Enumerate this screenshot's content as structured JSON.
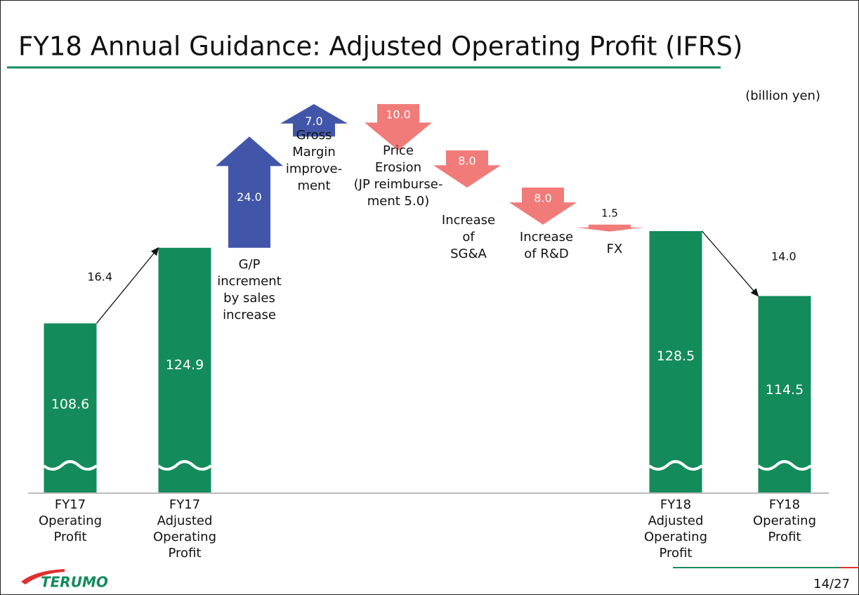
{
  "header": {
    "title": "FY18 Annual Guidance: Adjusted Operating Profit (IFRS)",
    "logo": "TERUMO",
    "page": "14/27"
  },
  "chart_data": {
    "type": "waterfall",
    "unit": "(billion yen)",
    "bar_color": "#138b5b",
    "up_color": "#4256a9",
    "down_color": "#f07b79",
    "bars": [
      {
        "label": [
          "FY17",
          "Operating",
          "Profit"
        ],
        "value": 108.6
      },
      {
        "label": [
          "FY17",
          "Adjusted",
          "Operating",
          "Profit"
        ],
        "value": 124.9
      },
      {
        "label": [
          "FY18",
          "Adjusted",
          "Operating",
          "Profit"
        ],
        "value": 128.5
      },
      {
        "label": [
          "FY18",
          "Operating",
          "Profit"
        ],
        "value": 114.5
      }
    ],
    "connectors": [
      {
        "value": 16.4
      },
      {
        "value": 14.0,
        "value_label": "14.0"
      }
    ],
    "steps": [
      {
        "label": [
          "G/P",
          "increment",
          "by sales",
          "increase"
        ],
        "value": 24.0,
        "value_label": "24.0",
        "direction": "up"
      },
      {
        "label": [
          "Gross",
          "Margin",
          "improve-",
          "ment"
        ],
        "value": 7.0,
        "value_label": "7.0",
        "direction": "up"
      },
      {
        "label": [
          "Price",
          "Erosion",
          "(JP reimburse-",
          "ment 5.0)"
        ],
        "value": 10.0,
        "value_label": "10.0",
        "direction": "down"
      },
      {
        "label": [
          "Increase",
          "of",
          "SG&A"
        ],
        "value": 8.0,
        "value_label": "8.0",
        "direction": "down"
      },
      {
        "label": [
          "Increase",
          "of R&D"
        ],
        "value": 8.0,
        "value_label": "8.0",
        "direction": "down"
      },
      {
        "label": [
          "FX"
        ],
        "value": 1.5,
        "direction": "down"
      }
    ]
  }
}
